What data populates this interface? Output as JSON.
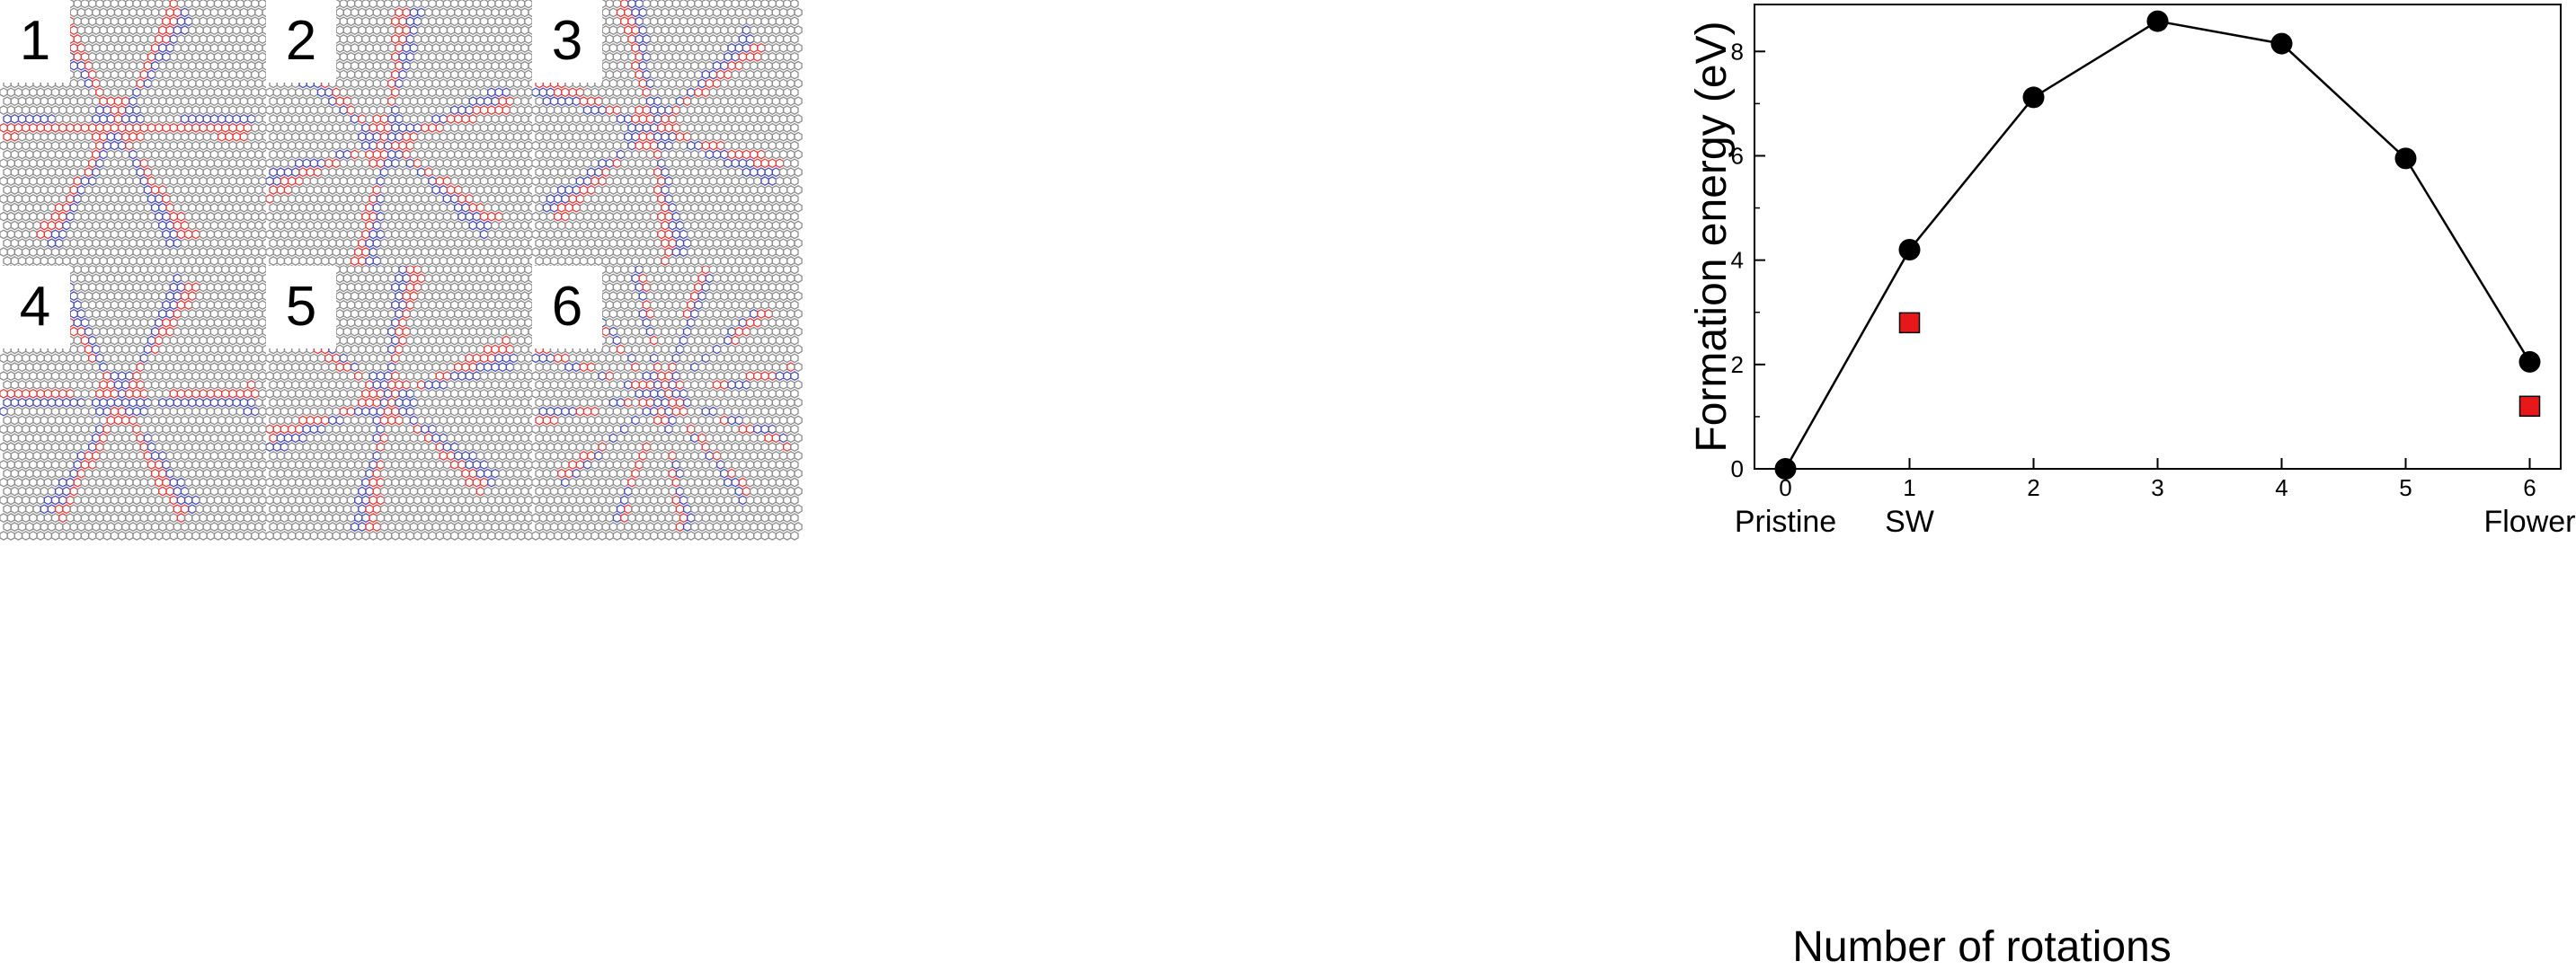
{
  "panels": [
    {
      "label": "1"
    },
    {
      "label": "2"
    },
    {
      "label": "3"
    },
    {
      "label": "4"
    },
    {
      "label": "5"
    },
    {
      "label": "6"
    }
  ],
  "colors": {
    "lattice": "#8c8c8c",
    "strain_red": "#e0403f",
    "strain_blue": "#4a4fb0",
    "marker_black": "#000000",
    "marker_red": "#e8181a"
  },
  "chart_data": {
    "type": "scatter",
    "title": "",
    "xlabel": "Number of rotations",
    "ylabel": "Formation energy (eV)",
    "xlim": [
      -0.25,
      6.25
    ],
    "ylim": [
      0,
      8.9
    ],
    "x_ticks": [
      0,
      1,
      2,
      3,
      4,
      5,
      6
    ],
    "x_subtick_labels": [
      "Pristine",
      "SW",
      "",
      "",
      "",
      "",
      "Flower"
    ],
    "y_ticks": [
      0,
      2,
      4,
      6,
      8
    ],
    "grid": false,
    "series": [
      {
        "style": "line-circle",
        "color": "#000000",
        "x": [
          0,
          1,
          2,
          3,
          4,
          5,
          6
        ],
        "y": [
          0.0,
          4.2,
          7.12,
          8.58,
          8.15,
          5.95,
          2.05
        ]
      },
      {
        "style": "square",
        "color": "#e8181a",
        "x": [
          1,
          6
        ],
        "y": [
          2.8,
          1.2
        ]
      }
    ]
  }
}
